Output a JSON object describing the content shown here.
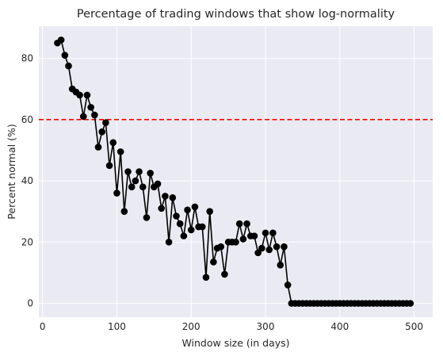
{
  "chart_data": {
    "type": "line",
    "title": "Percentage of trading windows that show log-normality",
    "xlabel": "Window size (in days)",
    "ylabel": "Percent normal (%)",
    "xlim": [
      -5,
      525
    ],
    "ylim": [
      -4.5,
      90.5
    ],
    "xticks": [
      0,
      100,
      200,
      300,
      400,
      500
    ],
    "yticks": [
      0,
      20,
      40,
      60,
      80
    ],
    "grid": true,
    "background_color": "#eaeaf2",
    "grid_color": "#ffffff",
    "series": [
      {
        "color": "#000000",
        "marker": "circle",
        "x": [
          20,
          25,
          30,
          35,
          40,
          45,
          50,
          55,
          60,
          65,
          70,
          75,
          80,
          85,
          90,
          95,
          100,
          105,
          110,
          115,
          120,
          125,
          130,
          135,
          140,
          145,
          150,
          155,
          160,
          165,
          170,
          175,
          180,
          185,
          190,
          195,
          200,
          205,
          210,
          215,
          220,
          225,
          230,
          235,
          240,
          245,
          250,
          255,
          260,
          265,
          270,
          275,
          280,
          285,
          290,
          295,
          300,
          305,
          310,
          315,
          320,
          325,
          330,
          335,
          340,
          345,
          350,
          355,
          360,
          365,
          370,
          375,
          380,
          385,
          390,
          395,
          400,
          405,
          410,
          415,
          420,
          425,
          430,
          435,
          440,
          445,
          450,
          455,
          460,
          465,
          470,
          475,
          480,
          485,
          490,
          495
        ],
        "y": [
          85,
          86,
          81,
          77.5,
          70,
          69,
          68,
          61,
          68,
          64,
          61.5,
          51,
          56,
          59,
          45,
          52.5,
          36,
          49.5,
          30,
          43,
          38,
          40,
          43,
          38,
          28,
          42.5,
          38,
          39,
          31,
          35,
          20,
          34.5,
          28.5,
          26,
          22,
          30.5,
          24,
          31.5,
          25,
          25,
          8.5,
          30,
          13.5,
          18,
          18.5,
          9.5,
          20,
          20,
          20,
          26,
          21,
          26,
          22,
          22,
          16.5,
          18,
          23,
          17.5,
          23,
          18.5,
          12.5,
          18.5,
          6,
          0,
          0,
          0,
          0,
          0,
          0,
          0,
          0,
          0,
          0,
          0,
          0,
          0,
          0,
          0,
          0,
          0,
          0,
          0,
          0,
          0,
          0,
          0,
          0,
          0,
          0,
          0,
          0,
          0,
          0,
          0,
          0,
          0
        ]
      }
    ],
    "reference_line": {
      "orientation": "horizontal",
      "y": 60,
      "color": "#ff0000",
      "style": "dashed"
    }
  }
}
